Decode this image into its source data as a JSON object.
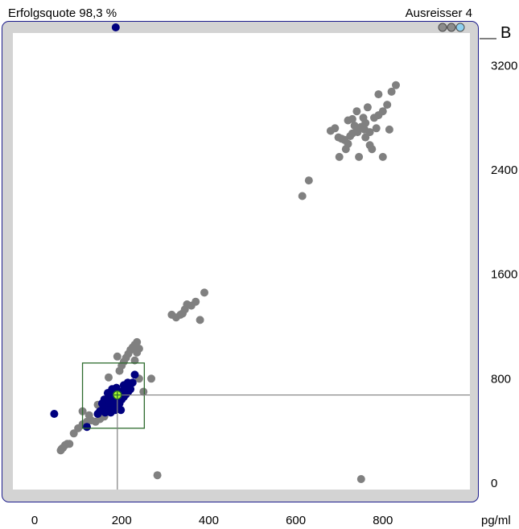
{
  "header": {
    "success_rate": "Erfolgsquote 98,3 %",
    "outliers": "Ausreisser 4",
    "panel_label": "B"
  },
  "toolbar": {
    "mode_dots": [
      {
        "icon": "grey-dot-icon",
        "color": "#8c8c8c"
      },
      {
        "icon": "grey-dot-icon",
        "color": "#8c8c8c"
      },
      {
        "icon": "lightblue-dot-icon",
        "color": "#8fd1f0"
      }
    ]
  },
  "colors": {
    "reference_points": "#808080",
    "sample_points": "#00007f",
    "marker": "#adff2f",
    "range_box": "#2e6b2e",
    "crosshair": "#808080"
  },
  "chart_data": {
    "type": "scatter",
    "xlabel": "pg/ml",
    "ylabel": "",
    "xlim": [
      -50,
      1000
    ],
    "ylim": [
      -50,
      3450
    ],
    "x_ticks": [
      "0",
      "200",
      "400",
      "600",
      "800"
    ],
    "y_ticks": [
      "0",
      "800",
      "1600",
      "2400",
      "3200"
    ],
    "x_tick_values": [
      0,
      200,
      400,
      600,
      800
    ],
    "y_tick_values": [
      0,
      800,
      1600,
      2400,
      3200
    ],
    "marker": {
      "x": 190,
      "y": 675
    },
    "range_box": {
      "x_min": 110,
      "x_max": 252,
      "y_min": 420,
      "y_max": 920
    },
    "series": [
      {
        "name": "",
        "color": "#808080",
        "points": [
          [
            60,
            250
          ],
          [
            65,
            270
          ],
          [
            70,
            290
          ],
          [
            75,
            300
          ],
          [
            62,
            262
          ],
          [
            80,
            300
          ],
          [
            90,
            380
          ],
          [
            100,
            420
          ],
          [
            110,
            450
          ],
          [
            120,
            470
          ],
          [
            130,
            480
          ],
          [
            140,
            470
          ],
          [
            150,
            490
          ],
          [
            160,
            510
          ],
          [
            110,
            550
          ],
          [
            125,
            520
          ],
          [
            145,
            600
          ],
          [
            170,
            810
          ],
          [
            195,
            860
          ],
          [
            200,
            900
          ],
          [
            205,
            930
          ],
          [
            210,
            960
          ],
          [
            215,
            990
          ],
          [
            220,
            1020
          ],
          [
            225,
            1040
          ],
          [
            230,
            1060
          ],
          [
            235,
            1080
          ],
          [
            190,
            970
          ],
          [
            240,
            1030
          ],
          [
            230,
            940
          ],
          [
            240,
            800
          ],
          [
            268,
            800
          ],
          [
            250,
            700
          ],
          [
            235,
            1000
          ],
          [
            315,
            1290
          ],
          [
            325,
            1270
          ],
          [
            340,
            1300
          ],
          [
            345,
            1330
          ],
          [
            350,
            1370
          ],
          [
            360,
            1360
          ],
          [
            370,
            1390
          ],
          [
            380,
            1250
          ],
          [
            390,
            1460
          ],
          [
            335,
            1290
          ],
          [
            282,
            60
          ],
          [
            750,
            30
          ],
          [
            615,
            2200
          ],
          [
            630,
            2320
          ],
          [
            690,
            2720
          ],
          [
            705,
            2640
          ],
          [
            720,
            2600
          ],
          [
            730,
            2680
          ],
          [
            740,
            2710
          ],
          [
            750,
            2730
          ],
          [
            760,
            2760
          ],
          [
            770,
            2690
          ],
          [
            780,
            2800
          ],
          [
            790,
            2820
          ],
          [
            800,
            2850
          ],
          [
            810,
            2900
          ],
          [
            820,
            3000
          ],
          [
            830,
            3050
          ],
          [
            720,
            2780
          ],
          [
            740,
            2850
          ],
          [
            760,
            2650
          ],
          [
            775,
            2560
          ],
          [
            800,
            2500
          ],
          [
            815,
            2710
          ],
          [
            700,
            2500
          ],
          [
            680,
            2700
          ],
          [
            715,
            2560
          ],
          [
            745,
            2500
          ],
          [
            790,
            2980
          ],
          [
            755,
            2800
          ],
          [
            765,
            2880
          ],
          [
            725,
            2660
          ],
          [
            735,
            2740
          ],
          [
            712,
            2630
          ],
          [
            758,
            2710
          ],
          [
            770,
            2590
          ],
          [
            698,
            2650
          ],
          [
            742,
            2690
          ],
          [
            730,
            2790
          ],
          [
            785,
            2720
          ]
        ]
      },
      {
        "name": "",
        "color": "#00007f",
        "points": [
          [
            45,
            530
          ],
          [
            120,
            430
          ],
          [
            145,
            530
          ],
          [
            150,
            550
          ],
          [
            155,
            560
          ],
          [
            160,
            570
          ],
          [
            165,
            580
          ],
          [
            170,
            600
          ],
          [
            175,
            610
          ],
          [
            180,
            620
          ],
          [
            185,
            640
          ],
          [
            190,
            660
          ],
          [
            195,
            680
          ],
          [
            200,
            700
          ],
          [
            205,
            710
          ],
          [
            210,
            720
          ],
          [
            215,
            740
          ],
          [
            220,
            760
          ],
          [
            225,
            770
          ],
          [
            230,
            830
          ],
          [
            160,
            600
          ],
          [
            165,
            630
          ],
          [
            170,
            650
          ],
          [
            175,
            670
          ],
          [
            180,
            690
          ],
          [
            185,
            700
          ],
          [
            190,
            620
          ],
          [
            195,
            610
          ],
          [
            200,
            640
          ],
          [
            205,
            660
          ],
          [
            170,
            560
          ],
          [
            175,
            540
          ],
          [
            180,
            580
          ],
          [
            185,
            600
          ],
          [
            190,
            590
          ],
          [
            210,
            680
          ],
          [
            215,
            700
          ],
          [
            220,
            720
          ],
          [
            155,
            610
          ],
          [
            160,
            640
          ],
          [
            168,
            690
          ],
          [
            188,
            730
          ],
          [
            198,
            560
          ],
          [
            185,
            560
          ],
          [
            178,
            720
          ],
          [
            205,
            750
          ],
          [
            214,
            770
          ],
          [
            162,
            540
          ],
          [
            172,
            620
          ],
          [
            182,
            650
          ]
        ]
      }
    ]
  }
}
